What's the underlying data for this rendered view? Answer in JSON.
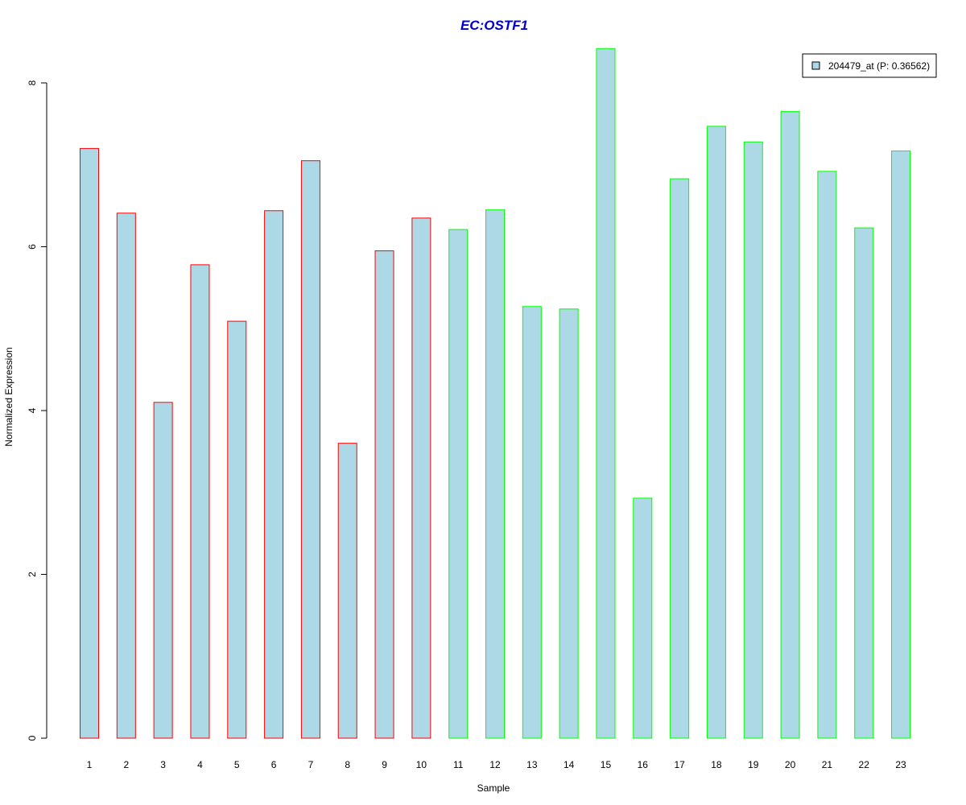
{
  "chart_data": {
    "type": "bar",
    "title": "EC:OSTF1",
    "xlabel": "Sample",
    "ylabel": "Normalized Expression",
    "ylim": [
      0,
      8
    ],
    "yticks": [
      "0",
      "2",
      "4",
      "6",
      "8"
    ],
    "categories": [
      "1",
      "2",
      "3",
      "4",
      "5",
      "6",
      "7",
      "8",
      "9",
      "10",
      "11",
      "12",
      "13",
      "14",
      "15",
      "16",
      "17",
      "18",
      "19",
      "20",
      "21",
      "22",
      "23"
    ],
    "series": [
      {
        "name": "204479_at (P: 0.36562)",
        "values": [
          7.2,
          6.41,
          4.1,
          5.78,
          5.09,
          6.44,
          7.05,
          3.6,
          5.95,
          6.35,
          6.21,
          6.45,
          5.27,
          5.24,
          8.42,
          2.93,
          6.83,
          7.47,
          7.28,
          7.65,
          6.92,
          6.23,
          7.17
        ]
      }
    ],
    "group_of_sample": [
      "A",
      "A",
      "A",
      "A",
      "A",
      "A",
      "A",
      "A",
      "A",
      "A",
      "B",
      "B",
      "B",
      "B",
      "B",
      "B",
      "B",
      "B",
      "B",
      "B",
      "B",
      "B",
      "B"
    ],
    "legend_position": "top-right",
    "grid": false,
    "colors": {
      "bar_fill": "#add8e6",
      "group_A_border": "#ff0000",
      "group_B_border": "#00ff00",
      "title": "#0000cd",
      "axis": "#000000"
    }
  }
}
